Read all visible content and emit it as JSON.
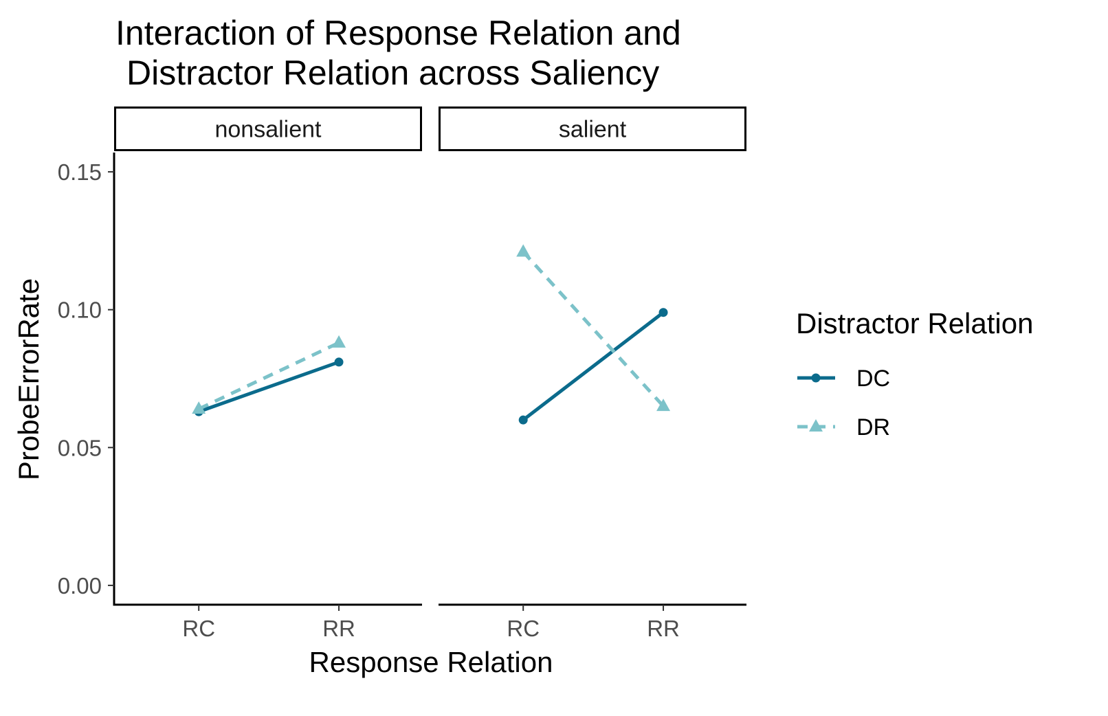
{
  "chart_data": {
    "type": "line",
    "title_line1": "Interaction of Response Relation and",
    "title_line2": "Distractor Relation across Saliency",
    "xlabel": "Response Relation",
    "ylabel": "ProbeErrorRate",
    "categories": [
      "RC",
      "RR"
    ],
    "ylim": [
      -0.007,
      0.157
    ],
    "yticks": [
      {
        "value": 0.0,
        "label": "0.00"
      },
      {
        "value": 0.05,
        "label": "0.05"
      },
      {
        "value": 0.1,
        "label": "0.10"
      },
      {
        "value": 0.15,
        "label": "0.15"
      }
    ],
    "grid": false,
    "legend_placement": "right",
    "legend_title": "Distractor Relation",
    "facets": [
      {
        "label": "nonsalient",
        "series": [
          {
            "name": "DC",
            "values": [
              0.063,
              0.081
            ]
          },
          {
            "name": "DR",
            "values": [
              0.064,
              0.088
            ]
          }
        ]
      },
      {
        "label": "salient",
        "series": [
          {
            "name": "DC",
            "values": [
              0.06,
              0.099
            ]
          },
          {
            "name": "DR",
            "values": [
              0.121,
              0.065
            ]
          }
        ]
      }
    ],
    "series_styles": {
      "DC": {
        "color": "#0b6b8c",
        "line": "solid",
        "marker": "circle"
      },
      "DR": {
        "color": "#7cc2c9",
        "line": "dashed",
        "marker": "triangle"
      }
    }
  }
}
